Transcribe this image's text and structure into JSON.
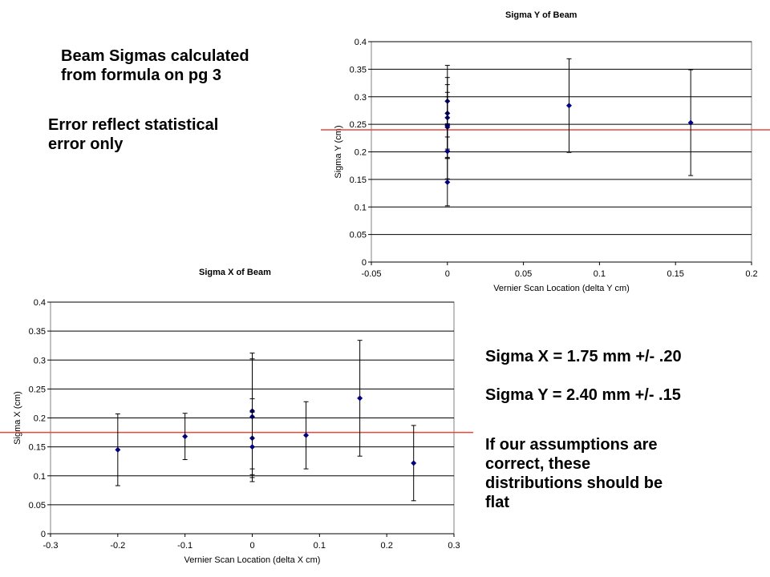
{
  "notes": {
    "title_line1": "Beam Sigmas calculated",
    "title_line2": "from formula on pg 3",
    "error_line1": "Error reflect statistical",
    "error_line2": "error only",
    "sigma_x": "Sigma X = 1.75 mm +/- .20",
    "sigma_y": "Sigma Y = 2.40 mm +/- .15",
    "assume_line1": "If our assumptions are",
    "assume_line2": "correct, these",
    "assume_line3": "distributions should be",
    "assume_line4": "flat"
  },
  "colors": {
    "points": "#000080",
    "mean_line": "#e8473b",
    "grid": "#000000",
    "errorbar": "#000000"
  },
  "chart_data": [
    {
      "id": "sigma-y",
      "type": "scatter",
      "title": "Sigma Y of Beam",
      "xlabel": "Vernier Scan Location (delta Y cm)",
      "ylabel": "Sigma Y (cm)",
      "xlim": [
        -0.05,
        0.2
      ],
      "ylim": [
        0,
        0.4
      ],
      "xticks": [
        "-0.05",
        "0",
        "0.05",
        "0.1",
        "0.15",
        "0.2"
      ],
      "yticks": [
        "0",
        "0.05",
        "0.1",
        "0.15",
        "0.2",
        "0.25",
        "0.3",
        "0.35",
        "0.4"
      ],
      "grid": "horizontal",
      "mean_line": 0.24,
      "points": [
        {
          "x": 0,
          "y": 0.292,
          "err": 0.065
        },
        {
          "x": 0,
          "y": 0.27,
          "err": 0.065
        },
        {
          "x": 0,
          "y": 0.262,
          "err": 0.06
        },
        {
          "x": 0,
          "y": 0.248,
          "err": 0.06
        },
        {
          "x": 0,
          "y": 0.245,
          "err": 0.055
        },
        {
          "x": 0,
          "y": 0.201,
          "err": 0.05
        },
        {
          "x": 0,
          "y": 0.145,
          "err": 0.043
        },
        {
          "x": 0.08,
          "y": 0.284,
          "err": 0.085
        },
        {
          "x": 0.16,
          "y": 0.253,
          "err": 0.096
        }
      ]
    },
    {
      "id": "sigma-x",
      "type": "scatter",
      "title": "Sigma X of Beam",
      "xlabel": "Vernier Scan Location (delta X cm)",
      "ylabel": "Sigma X (cm)",
      "xlim": [
        -0.3,
        0.3
      ],
      "ylim": [
        0,
        0.4
      ],
      "xticks": [
        "-0.3",
        "-0.2",
        "-0.1",
        "0",
        "0.1",
        "0.2",
        "0.3"
      ],
      "yticks": [
        "0",
        "0.05",
        "0.1",
        "0.15",
        "0.2",
        "0.25",
        "0.3",
        "0.35",
        "0.4"
      ],
      "grid": "horizontal",
      "mean_line": 0.175,
      "points": [
        {
          "x": -0.2,
          "y": 0.145,
          "err": 0.062
        },
        {
          "x": -0.1,
          "y": 0.168,
          "err": 0.04
        },
        {
          "x": 0,
          "y": 0.212,
          "err": 0.1
        },
        {
          "x": 0,
          "y": 0.202,
          "err": 0.1
        },
        {
          "x": 0,
          "y": 0.165,
          "err": 0.068
        },
        {
          "x": 0,
          "y": 0.15,
          "err": 0.06
        },
        {
          "x": 0.08,
          "y": 0.17,
          "err": 0.058
        },
        {
          "x": 0.16,
          "y": 0.234,
          "err": 0.1
        },
        {
          "x": 0.24,
          "y": 0.122,
          "err": 0.065
        }
      ]
    }
  ]
}
